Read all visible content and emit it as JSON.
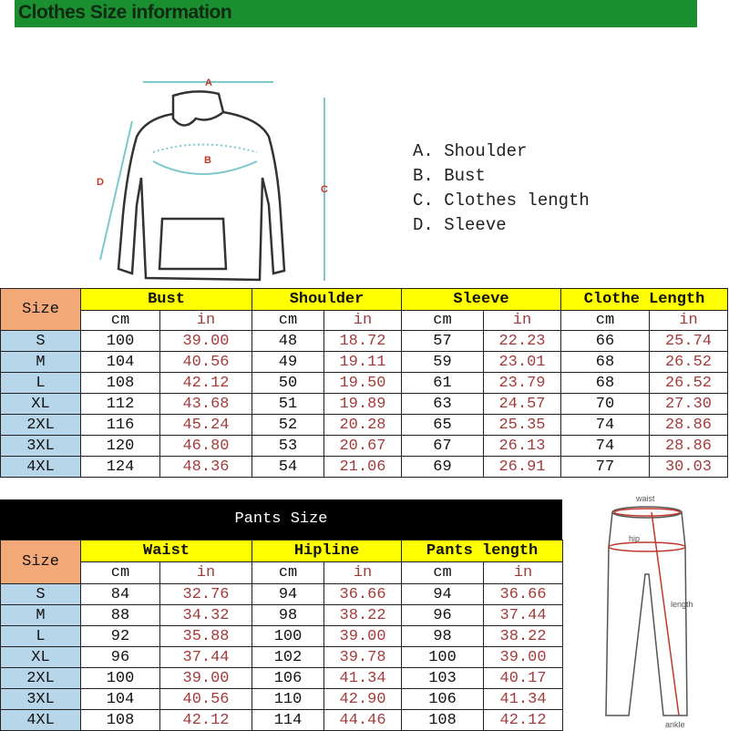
{
  "banner": {
    "title": "Clothes Size information",
    "color": "#1b8f30"
  },
  "hoodie_labels": {
    "a": "A",
    "b": "B",
    "c": "C",
    "d": "D"
  },
  "legend": [
    "A. Shoulder",
    "B. Bust",
    "C. Clothes length",
    "D. Sleeve"
  ],
  "clothes_table": {
    "size_label": "Size",
    "groups": [
      "Bust",
      "Shoulder",
      "Sleeve",
      "Clothe Length"
    ],
    "units": [
      "cm",
      "in"
    ],
    "rows": [
      [
        "S",
        "100",
        "39.00",
        "48",
        "18.72",
        "57",
        "22.23",
        "66",
        "25.74"
      ],
      [
        "M",
        "104",
        "40.56",
        "49",
        "19.11",
        "59",
        "23.01",
        "68",
        "26.52"
      ],
      [
        "L",
        "108",
        "42.12",
        "50",
        "19.50",
        "61",
        "23.79",
        "68",
        "26.52"
      ],
      [
        "XL",
        "112",
        "43.68",
        "51",
        "19.89",
        "63",
        "24.57",
        "70",
        "27.30"
      ],
      [
        "2XL",
        "116",
        "45.24",
        "52",
        "20.28",
        "65",
        "25.35",
        "74",
        "28.86"
      ],
      [
        "3XL",
        "120",
        "46.80",
        "53",
        "20.67",
        "67",
        "26.13",
        "74",
        "28.86"
      ],
      [
        "4XL",
        "124",
        "48.36",
        "54",
        "21.06",
        "69",
        "26.91",
        "77",
        "30.03"
      ]
    ]
  },
  "pants_table": {
    "title": "Pants Size",
    "size_label": "Size",
    "groups": [
      "Waist",
      "Hipline",
      "Pants length"
    ],
    "units": [
      "cm",
      "in"
    ],
    "rows": [
      [
        "S",
        "84",
        "32.76",
        "94",
        "36.66",
        "94",
        "36.66"
      ],
      [
        "M",
        "88",
        "34.32",
        "98",
        "38.22",
        "96",
        "37.44"
      ],
      [
        "L",
        "92",
        "35.88",
        "100",
        "39.00",
        "98",
        "38.22"
      ],
      [
        "XL",
        "96",
        "37.44",
        "102",
        "39.78",
        "100",
        "39.00"
      ],
      [
        "2XL",
        "100",
        "39.00",
        "106",
        "41.34",
        "103",
        "40.17"
      ],
      [
        "3XL",
        "104",
        "40.56",
        "110",
        "42.90",
        "106",
        "41.34"
      ],
      [
        "4XL",
        "108",
        "42.12",
        "114",
        "44.46",
        "108",
        "42.12"
      ]
    ]
  },
  "pants_labels": {
    "waist": "waist",
    "hip": "hip",
    "length": "length",
    "ankle": "ankle"
  }
}
